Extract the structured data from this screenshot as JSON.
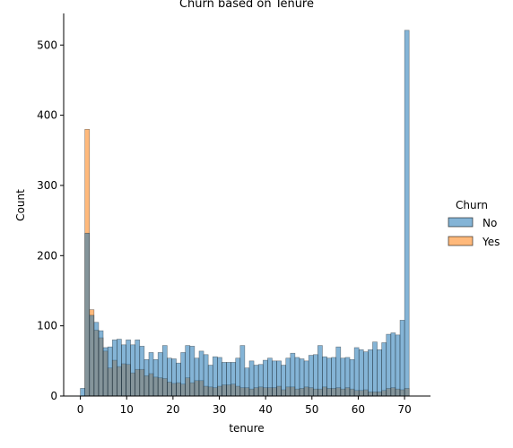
{
  "chart_data": {
    "type": "bar",
    "subtype": "overlaid-histogram",
    "title": "Churn based on Tenure",
    "xlabel": "tenure",
    "ylabel": "Count",
    "xlim": [
      -3.6,
      75.6
    ],
    "ylim": [
      0,
      545
    ],
    "xticks": [
      0,
      10,
      20,
      30,
      40,
      50,
      60,
      70
    ],
    "yticks": [
      0,
      100,
      200,
      300,
      400,
      500
    ],
    "bin_width": 0.986,
    "bin_start": 0,
    "legend": {
      "title": "Churn",
      "placement": "right",
      "entries": [
        "No",
        "Yes"
      ]
    },
    "series": [
      {
        "name": "No",
        "color": "#1f77b4",
        "values": [
          11,
          232,
          115,
          105,
          93,
          69,
          70,
          80,
          81,
          73,
          80,
          73,
          80,
          71,
          52,
          62,
          52,
          62,
          72,
          54,
          53,
          47,
          62,
          72,
          71,
          54,
          64,
          59,
          44,
          56,
          55,
          48,
          48,
          48,
          54,
          72,
          40,
          50,
          44,
          45,
          51,
          54,
          50,
          50,
          44,
          54,
          61,
          55,
          53,
          50,
          58,
          59,
          72,
          56,
          54,
          55,
          70,
          54,
          55,
          52,
          69,
          66,
          63,
          66,
          77,
          66,
          76,
          88,
          90,
          87,
          108,
          521
        ]
      },
      {
        "name": "Yes",
        "color": "#ff7f0e",
        "values": [
          0,
          380,
          123,
          94,
          83,
          64,
          40,
          51,
          42,
          46,
          45,
          33,
          38,
          38,
          29,
          32,
          27,
          26,
          25,
          20,
          18,
          19,
          17,
          26,
          19,
          22,
          22,
          14,
          13,
          12,
          14,
          16,
          16,
          17,
          14,
          12,
          12,
          10,
          12,
          13,
          12,
          12,
          12,
          14,
          9,
          13,
          13,
          10,
          11,
          13,
          12,
          10,
          10,
          13,
          11,
          11,
          12,
          10,
          12,
          10,
          8,
          8,
          9,
          6,
          6,
          6,
          8,
          11,
          12,
          10,
          9,
          11
        ]
      }
    ]
  }
}
